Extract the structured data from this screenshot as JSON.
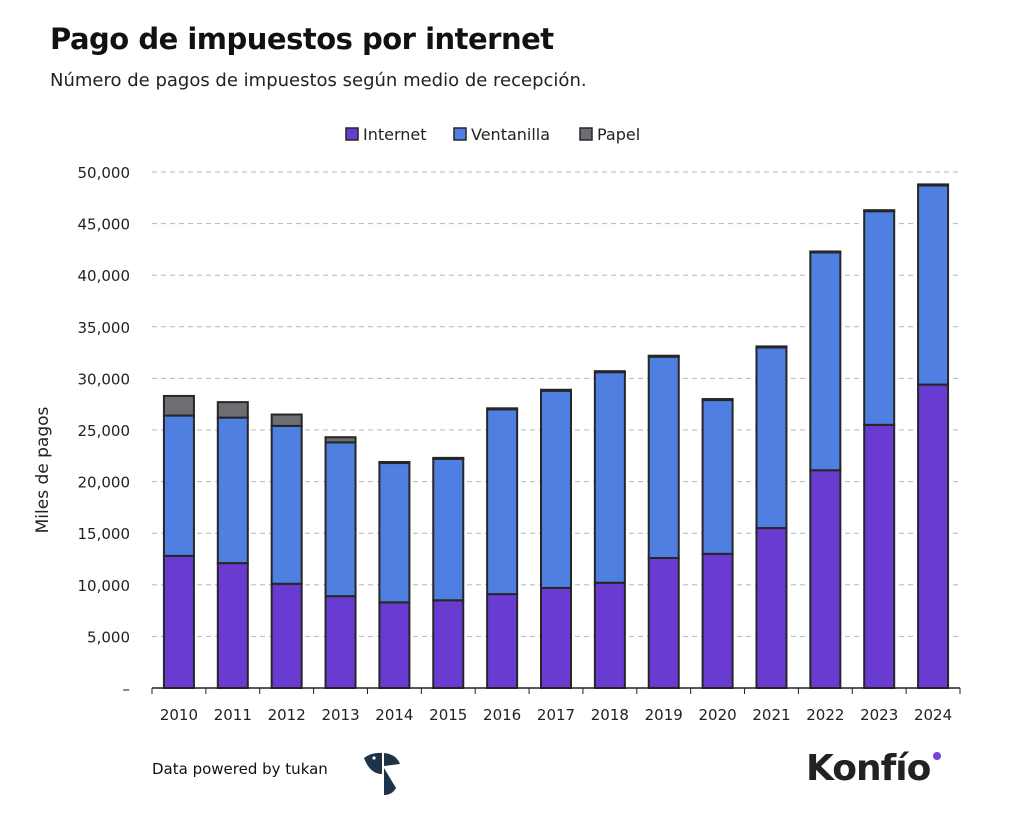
{
  "header": {
    "title": "Pago de impuestos por internet",
    "subtitle": "Número de pagos de impuestos según medio de recepción."
  },
  "footer": {
    "credit": "Data powered by tukan",
    "logo_text": "Konfío",
    "tukan_logo": "tukan-logo-icon"
  },
  "chart_data": {
    "type": "bar",
    "stacked": true,
    "ylabel": "Miles de pagos",
    "ylim": [
      0,
      50000
    ],
    "yticks": [
      0,
      5000,
      10000,
      15000,
      20000,
      25000,
      30000,
      35000,
      40000,
      45000,
      50000
    ],
    "ytick_labels": [
      "–",
      "5,000",
      "10,000",
      "15,000",
      "20,000",
      "25,000",
      "30,000",
      "35,000",
      "40,000",
      "45,000",
      "50,000"
    ],
    "grid": "horizontal-dashed",
    "legend_position": "top-center",
    "categories": [
      "2010",
      "2011",
      "2012",
      "2013",
      "2014",
      "2015",
      "2016",
      "2017",
      "2018",
      "2019",
      "2020",
      "2021",
      "2022",
      "2023",
      "2024"
    ],
    "series": [
      {
        "name": "Internet",
        "color": "#6a3bd0",
        "values": [
          12800,
          12100,
          10100,
          8900,
          8300,
          8500,
          9100,
          9700,
          10200,
          12600,
          13000,
          15500,
          21100,
          25500,
          29400
        ]
      },
      {
        "name": "Ventanilla",
        "color": "#4f7fe0",
        "values": [
          13600,
          14100,
          15300,
          14900,
          13500,
          13700,
          17900,
          19100,
          20400,
          19500,
          14900,
          17500,
          21100,
          20700,
          19300
        ]
      },
      {
        "name": "Papel",
        "color": "#6d6d74",
        "values": [
          1900,
          1500,
          1100,
          500,
          100,
          100,
          100,
          100,
          100,
          100,
          100,
          100,
          100,
          100,
          100
        ]
      }
    ]
  }
}
